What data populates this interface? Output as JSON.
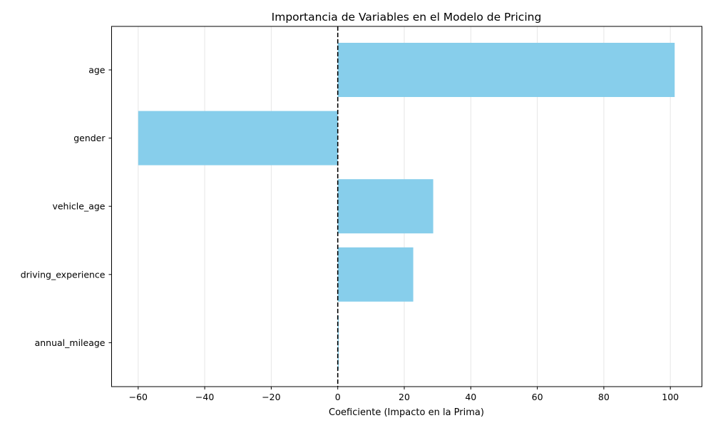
{
  "chart_data": {
    "type": "bar",
    "orientation": "horizontal",
    "title": "Importancia de Variables en el Modelo de Pricing",
    "xlabel": "Coeficiente (Impacto en la Prima)",
    "ylabel": "",
    "categories": [
      "age",
      "gender",
      "vehicle_age",
      "driving_experience",
      "annual_mileage"
    ],
    "values": [
      101.3,
      -60.0,
      28.7,
      22.7,
      0.3
    ],
    "xlim": [
      -68,
      109.5
    ],
    "xticks": [
      -60,
      -40,
      -20,
      0,
      20,
      40,
      60,
      80,
      100
    ],
    "xtick_labels": [
      "−60",
      "−40",
      "−20",
      "0",
      "20",
      "40",
      "60",
      "80",
      "100"
    ],
    "grid": "vertical",
    "reference_line": {
      "x": 0,
      "style": "dashed",
      "color": "#000000"
    },
    "colors": {
      "bar": "#87ceeb",
      "grid": "#e6e6e6",
      "axis": "#000000"
    }
  }
}
